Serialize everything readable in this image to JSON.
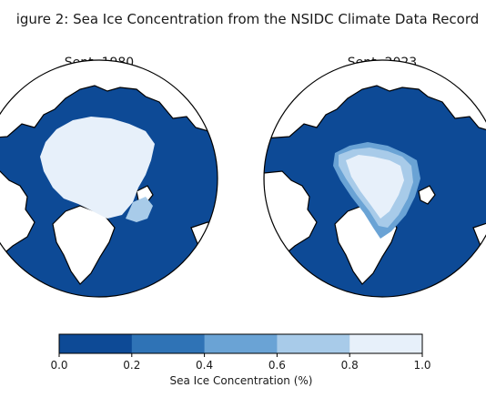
{
  "figure": {
    "title": "igure 2: Sea Ice Concentration from the NSIDC Climate Data Record"
  },
  "maps": [
    {
      "title": "Sept. 1980"
    },
    {
      "title": "Sept. 2023"
    }
  ],
  "colorbar": {
    "label": "Sea Ice Concentration (%)",
    "ticks": [
      "0.0",
      "0.2",
      "0.4",
      "0.6",
      "0.8",
      "1.0"
    ],
    "colors": [
      "#0d4a96",
      "#2f73b6",
      "#6aa3d5",
      "#a8cbe9",
      "#e7f0fa"
    ]
  },
  "colors": {
    "ocean": "#0d4a96",
    "land": "#ffffff",
    "ice_high": "#e7f0fa",
    "ice_mid": "#a8cbe9",
    "ice_low": "#6aa3d5",
    "outline": "#000000"
  }
}
